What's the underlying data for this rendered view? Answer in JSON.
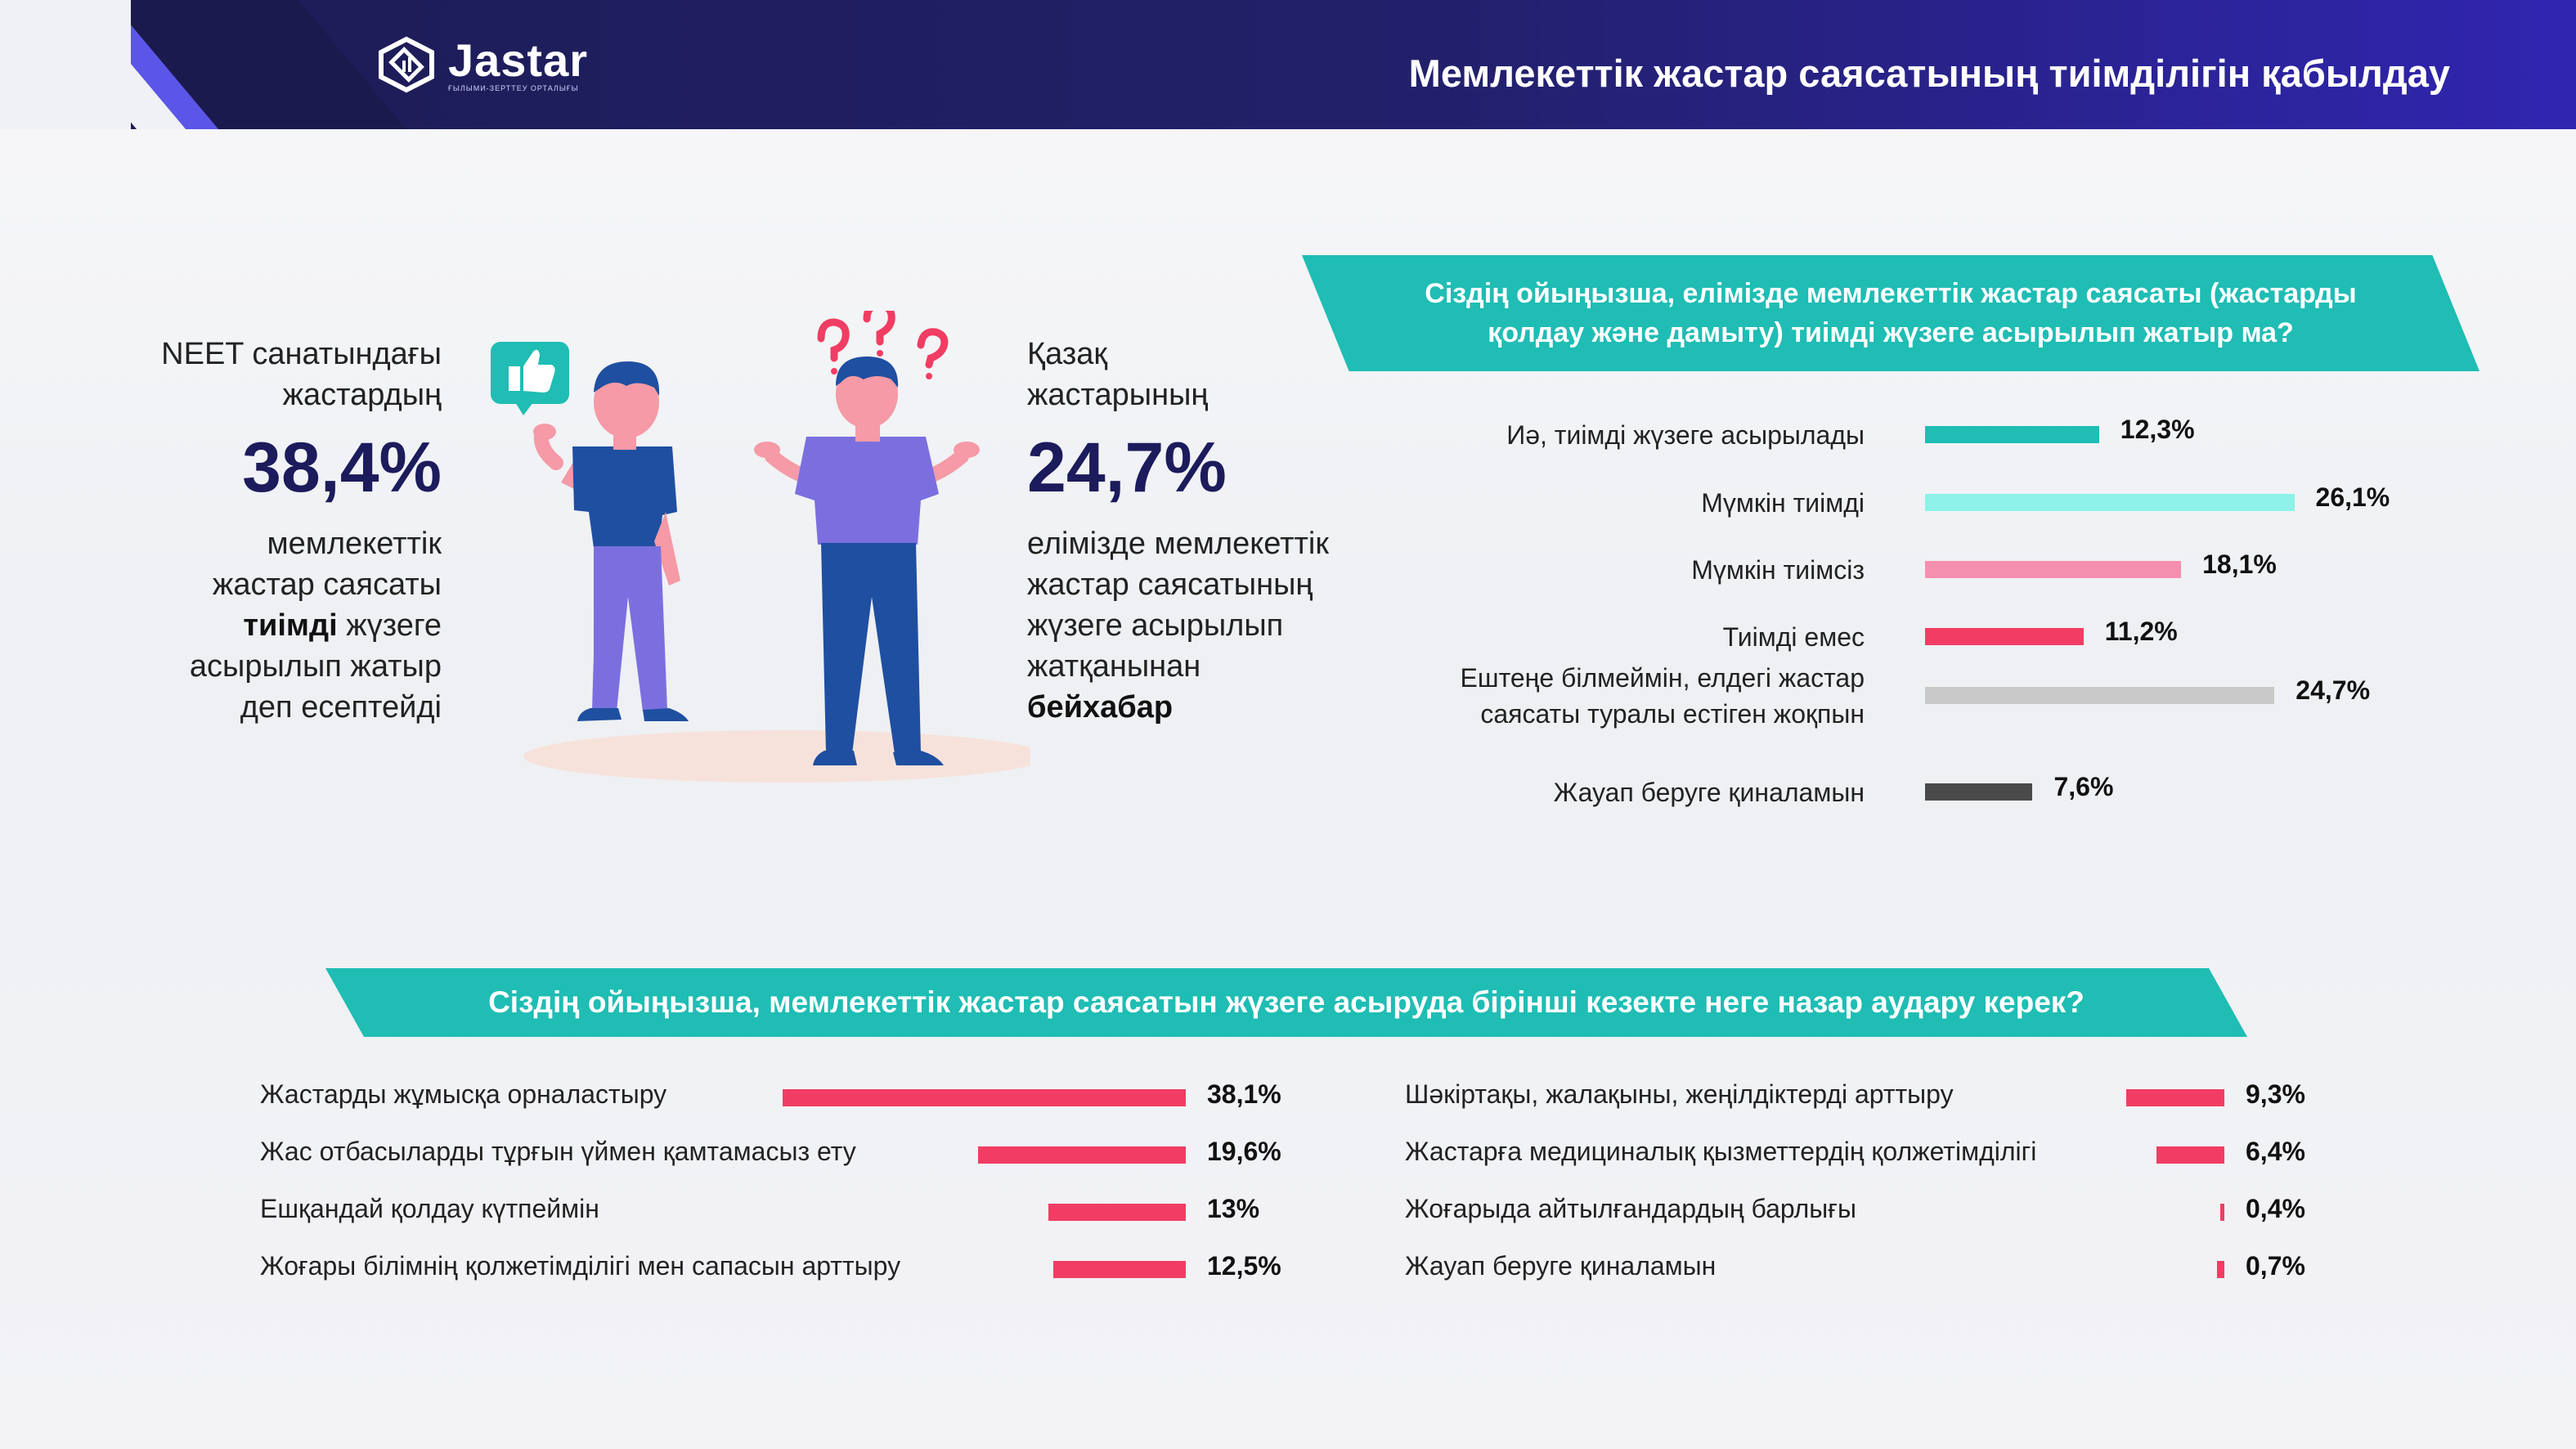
{
  "header": {
    "logo_name": "Jastar",
    "logo_subtitle": "ҒЫЛЫМИ-ЗЕРТТЕУ ОРТАЛЫҒЫ",
    "title": "Мемлекеттік жастар саясатының тиімділігін қабылдау"
  },
  "stat_left": {
    "intro_1": "NEET санатындағы",
    "intro_2": "жастардың",
    "percent": "38,4%",
    "body_1": "мемлекеттік",
    "body_2": "жастар саясаты",
    "body_3_bold": "тиімді",
    "body_3_rest": " жүзеге",
    "body_4": "асырылып жатыр",
    "body_5": "деп есептейді"
  },
  "stat_right": {
    "intro_1": "Қазақ",
    "intro_2": "жастарының",
    "percent": "24,7%",
    "body_1": "елімізде мемлекеттік",
    "body_2": "жастар саясатының",
    "body_3": "жүзеге асырылып",
    "body_4": "жатқанынан",
    "body_5_bold": "бейхабар"
  },
  "illustration": {
    "icons": [
      "thumbs-up-icon",
      "question-marks-icon"
    ],
    "colors": {
      "shirt_dark": "#1f4fa0",
      "pants_purple": "#7b6fe0",
      "skin": "#f59aa6",
      "hair": "#1f4fa0",
      "badge": "#1fbdb4",
      "question": "#f13d63"
    }
  },
  "chart_data": [
    {
      "type": "bar",
      "orientation": "horizontal",
      "title": "Сіздің ойыңызша, елімізде мемлекеттік жастар саясаты (жастарды қолдау және дамыту) тиімді жүзеге асырылып жатыр ма?",
      "categories": [
        "Иә, тиімді жүзеге асырылады",
        "Мүмкін тиімді",
        "Мүмкін тиімсіз",
        "Тиімді емес",
        "Ештеңе білмеймін, елдегі жастар саясаты туралы естіген жоқпын",
        "Жауап беруге қиналамын"
      ],
      "label_lines": [
        [
          "Иә, тиімді жүзеге асырылады"
        ],
        [
          "Мүмкін тиімді"
        ],
        [
          "Мүмкін тиімсіз"
        ],
        [
          "Тиімді емес"
        ],
        [
          "Ештеңе білмеймін, елдегі жастар",
          "саясаты туралы естіген жоқпын"
        ],
        [
          "Жауап беруге қиналамын"
        ]
      ],
      "values": [
        12.3,
        26.1,
        18.1,
        11.2,
        24.7,
        7.6
      ],
      "value_labels": [
        "12,3%",
        "26,1%",
        "18,1%",
        "11,2%",
        "24,7%",
        "7,6%"
      ],
      "colors": [
        "#1fbdb4",
        "#8ff2e8",
        "#f58fb0",
        "#f13d63",
        "#c9c9c9",
        "#4a4a4a"
      ],
      "unit": "%",
      "grid": false
    },
    {
      "type": "bar",
      "orientation": "horizontal",
      "title": "Сіздің ойыңызша, мемлекеттік жастар саясатын жүзеге асыруда бірінші кезекте неге назар аудару керек?",
      "columns": [
        {
          "categories": [
            "Жастарды жұмысқа орналастыру",
            "Жас отбасыларды тұрғын үймен қамтамасыз ету",
            "Ешқандай қолдау күтпеймін",
            "Жоғары білімнің қолжетімділігі мен сапасын арттыру"
          ],
          "values": [
            38.1,
            19.6,
            13,
            12.5
          ],
          "value_labels": [
            "38,1%",
            "19,6%",
            "13%",
            "12,5%"
          ]
        },
        {
          "categories": [
            "Шәкіртақы, жалақыны, жеңілдіктерді арттыру",
            "Жастарға медициналық қызметтердің қолжетімділігі",
            "Жоғарыда айтылғандардың барлығы",
            "Жауап беруге қиналамын"
          ],
          "values": [
            9.3,
            6.4,
            0.4,
            0.7
          ],
          "value_labels": [
            "9,3%",
            "6,4%",
            "0,4%",
            "0,7%"
          ]
        }
      ],
      "color": "#f13d63",
      "unit": "%",
      "grid": false
    }
  ]
}
